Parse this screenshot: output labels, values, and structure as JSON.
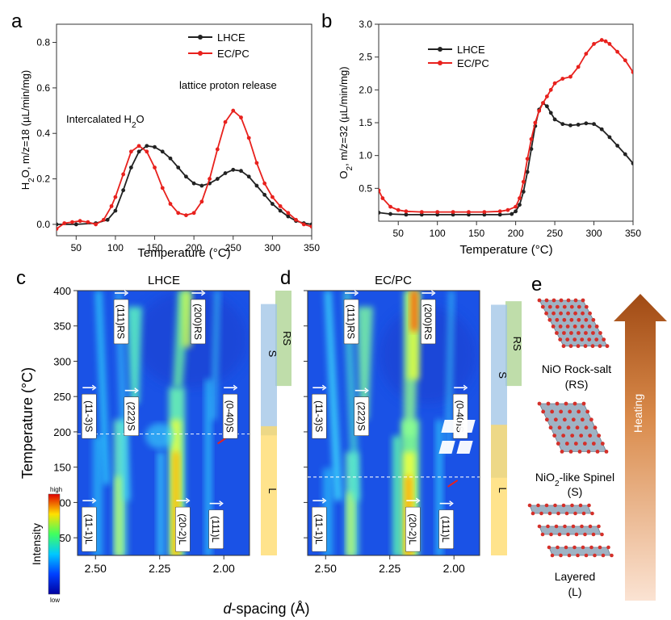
{
  "panels": {
    "a": "a",
    "b": "b",
    "c": "c",
    "d": "d",
    "e": "e"
  },
  "chart_data": [
    {
      "id": "a",
      "type": "line",
      "xlabel": "Temperature (°C)",
      "ylabel_parts": [
        "H",
        "2",
        "O, m/z=18 (µL/min/mg)"
      ],
      "xlim": [
        25,
        350
      ],
      "ylim": [
        -0.05,
        0.88
      ],
      "xticks": [
        50,
        100,
        150,
        200,
        250,
        300,
        350
      ],
      "yticks": [
        0.0,
        0.2,
        0.4,
        0.6,
        0.8
      ],
      "ytick_labels": [
        "0.0",
        "0.2",
        "0.4",
        "0.6",
        "0.8"
      ],
      "annotations": {
        "intercalated_parts": [
          "Intercalated H",
          "2",
          "O"
        ],
        "lattice": "lattice proton release"
      },
      "legend": {
        "placement": "top-right"
      },
      "series": [
        {
          "name": "LHCE",
          "color": "#222222",
          "x": [
            25,
            50,
            75,
            90,
            100,
            110,
            120,
            130,
            140,
            150,
            160,
            170,
            180,
            190,
            200,
            210,
            220,
            230,
            240,
            250,
            260,
            270,
            280,
            290,
            300,
            310,
            320,
            330,
            340,
            350
          ],
          "y": [
            0.0,
            0.0,
            0.005,
            0.02,
            0.06,
            0.15,
            0.25,
            0.32,
            0.345,
            0.34,
            0.32,
            0.29,
            0.25,
            0.21,
            0.18,
            0.17,
            0.18,
            0.2,
            0.225,
            0.24,
            0.235,
            0.21,
            0.17,
            0.13,
            0.09,
            0.06,
            0.035,
            0.015,
            0.005,
            0.0
          ]
        },
        {
          "name": "EC/PC",
          "color": "#e8211d",
          "x": [
            25,
            35,
            45,
            55,
            65,
            75,
            85,
            95,
            100,
            110,
            120,
            130,
            140,
            150,
            160,
            170,
            180,
            190,
            200,
            210,
            220,
            230,
            240,
            250,
            260,
            270,
            280,
            290,
            300,
            310,
            320,
            330,
            340,
            350
          ],
          "y": [
            -0.02,
            0.005,
            0.01,
            0.015,
            0.01,
            0.0,
            0.02,
            0.08,
            0.12,
            0.22,
            0.32,
            0.345,
            0.32,
            0.25,
            0.16,
            0.09,
            0.05,
            0.04,
            0.05,
            0.1,
            0.2,
            0.33,
            0.45,
            0.5,
            0.47,
            0.38,
            0.27,
            0.18,
            0.12,
            0.08,
            0.05,
            0.02,
            0.0,
            -0.01
          ]
        }
      ]
    },
    {
      "id": "b",
      "type": "line",
      "xlabel": "Temperature (°C)",
      "ylabel_parts": [
        "O",
        "2",
        ", m/z=32 (µL/min/mg)"
      ],
      "xlim": [
        25,
        350
      ],
      "ylim": [
        0.0,
        3.0
      ],
      "xticks": [
        50,
        100,
        150,
        200,
        250,
        300,
        350
      ],
      "yticks": [
        0.5,
        1.0,
        1.5,
        2.0,
        2.5,
        3.0
      ],
      "ytick_labels": [
        "0.5",
        "1.0",
        "1.5",
        "2.0",
        "2.5",
        "3.0"
      ],
      "legend": {
        "placement": "top-left"
      },
      "series": [
        {
          "name": "LHCE",
          "color": "#222222",
          "x": [
            25,
            40,
            60,
            80,
            100,
            120,
            140,
            160,
            180,
            195,
            200,
            205,
            210,
            215,
            220,
            225,
            230,
            235,
            240,
            245,
            250,
            260,
            270,
            280,
            290,
            300,
            310,
            320,
            330,
            340,
            350
          ],
          "y": [
            0.13,
            0.11,
            0.1,
            0.1,
            0.1,
            0.1,
            0.1,
            0.1,
            0.1,
            0.11,
            0.15,
            0.25,
            0.45,
            0.75,
            1.1,
            1.45,
            1.7,
            1.8,
            1.75,
            1.65,
            1.55,
            1.48,
            1.46,
            1.47,
            1.49,
            1.48,
            1.4,
            1.28,
            1.15,
            1.02,
            0.88
          ]
        },
        {
          "name": "EC/PC",
          "color": "#e8211d",
          "x": [
            25,
            30,
            40,
            50,
            60,
            80,
            100,
            120,
            140,
            160,
            180,
            190,
            200,
            205,
            210,
            215,
            220,
            225,
            230,
            235,
            240,
            245,
            250,
            260,
            270,
            280,
            290,
            300,
            310,
            315,
            320,
            330,
            340,
            350
          ],
          "y": [
            0.47,
            0.35,
            0.22,
            0.17,
            0.15,
            0.14,
            0.14,
            0.14,
            0.14,
            0.14,
            0.15,
            0.17,
            0.22,
            0.35,
            0.6,
            0.95,
            1.25,
            1.5,
            1.68,
            1.8,
            1.9,
            2.0,
            2.1,
            2.17,
            2.2,
            2.35,
            2.55,
            2.7,
            2.76,
            2.74,
            2.7,
            2.58,
            2.45,
            2.27
          ]
        }
      ]
    },
    {
      "id": "c",
      "type": "heatmap",
      "title": "LHCE",
      "xlim": [
        2.57,
        1.9
      ],
      "ylim": [
        25,
        400
      ],
      "xticks": [
        2.5,
        2.25,
        2.0
      ],
      "xtick_labels": [
        "2.50",
        "2.25",
        "2.00"
      ],
      "yticks": [
        50,
        100,
        150,
        200,
        250,
        300,
        350,
        400
      ],
      "dashed_line_temp": 197,
      "phase_labels": [
        {
          "text": "(111)RS",
          "d": 2.4,
          "t": 356
        },
        {
          "text": "(200)RS",
          "d": 2.1,
          "t": 356
        },
        {
          "text": "(11-3)S",
          "d": 2.525,
          "t": 222
        },
        {
          "text": "(222)S",
          "d": 2.36,
          "t": 222
        },
        {
          "text": "(0-40)S",
          "d": 1.975,
          "t": 222
        },
        {
          "text": "(11-1)L",
          "d": 2.525,
          "t": 62
        },
        {
          "text": "(20-2)L",
          "d": 2.16,
          "t": 62
        },
        {
          "text": "(111)L",
          "d": 2.03,
          "t": 62
        }
      ],
      "phase_bars": [
        {
          "label": "RS",
          "t_range": [
            265,
            400
          ]
        },
        {
          "label": "S",
          "t_range": [
            195,
            381
          ]
        },
        {
          "label": "L",
          "t_range": [
            25,
            208
          ]
        }
      ]
    },
    {
      "id": "d",
      "type": "heatmap",
      "title": "EC/PC",
      "xlim": [
        2.57,
        1.9
      ],
      "ylim": [
        25,
        400
      ],
      "xticks": [
        2.5,
        2.25,
        2.0
      ],
      "xtick_labels": [
        "2.50",
        "2.25",
        "2.00"
      ],
      "yticks": [
        50,
        100,
        150,
        200,
        250,
        300,
        350,
        400
      ],
      "dashed_line_temp": 136,
      "phase_labels": [
        {
          "text": "(111)RS",
          "d": 2.4,
          "t": 356
        },
        {
          "text": "(200)RS",
          "d": 2.1,
          "t": 356
        },
        {
          "text": "(11-3)S",
          "d": 2.525,
          "t": 222
        },
        {
          "text": "(222)S",
          "d": 2.36,
          "t": 222
        },
        {
          "text": "(0-40)S",
          "d": 1.975,
          "t": 222
        },
        {
          "text": "(11-1)L",
          "d": 2.525,
          "t": 62
        },
        {
          "text": "(20-2)L",
          "d": 2.16,
          "t": 62
        },
        {
          "text": "(111)L",
          "d": 2.03,
          "t": 62
        }
      ],
      "phase_bars": [
        {
          "label": "RS",
          "t_range": [
            265,
            385
          ]
        },
        {
          "label": "S",
          "t_range": [
            135,
            380
          ]
        },
        {
          "label": "L",
          "t_range": [
            25,
            210
          ]
        }
      ]
    }
  ],
  "heatmap_common": {
    "ylabel": "Temperature (°C)",
    "xlabel_italic": "d",
    "xlabel_rest": "-spacing (Å)",
    "colorbar": {
      "label": "Intensity",
      "high": "high",
      "low": "low"
    }
  },
  "schematic": {
    "heating_label": "Heating",
    "structures": [
      {
        "name": "NiO Rock-salt",
        "abbr": "(RS)"
      },
      {
        "name_parts": [
          "NiO",
          "2",
          "-like Spinel"
        ],
        "abbr": "(S)"
      },
      {
        "name": "Layered",
        "abbr": "(L)"
      }
    ]
  },
  "colors": {
    "lhce": "#222222",
    "ecpc": "#e8211d",
    "heat_bg": "#1a52e6"
  }
}
